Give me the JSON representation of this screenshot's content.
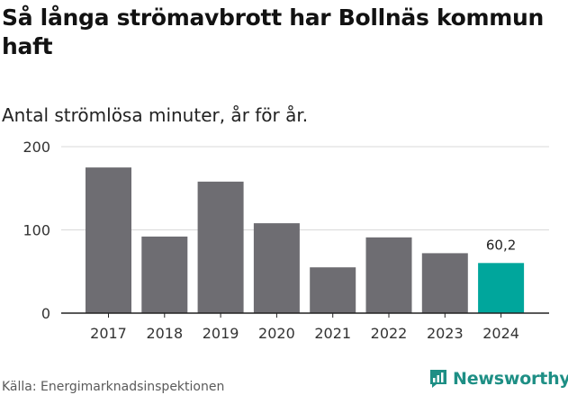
{
  "header": {
    "title": "Så långa strömavbrott har Bollnäs kommun haft",
    "subtitle": "Antal strömlösa minuter, år för år."
  },
  "footer": {
    "source": "Källa: Energimarknadsinspektionen",
    "brand": "Newsworthy"
  },
  "colors": {
    "bar": "#6e6d72",
    "highlight": "#00a69c",
    "grid": "#d9d9d9",
    "axis": "#222222",
    "brand": "#1e8f85"
  },
  "chart_data": {
    "type": "bar",
    "title": "Så långa strömavbrott har Bollnäs kommun haft",
    "subtitle": "Antal strömlösa minuter, år för år.",
    "xlabel": "",
    "ylabel": "",
    "categories": [
      "2017",
      "2018",
      "2019",
      "2020",
      "2021",
      "2022",
      "2023",
      "2024"
    ],
    "values": [
      175,
      92,
      158,
      108,
      55,
      91,
      72,
      60.2
    ],
    "highlight_index": 7,
    "data_labels": [
      {
        "index": 7,
        "text": "60,2"
      }
    ],
    "ylim": [
      0,
      200
    ],
    "yticks": [
      0,
      100,
      200
    ],
    "grid": true
  }
}
